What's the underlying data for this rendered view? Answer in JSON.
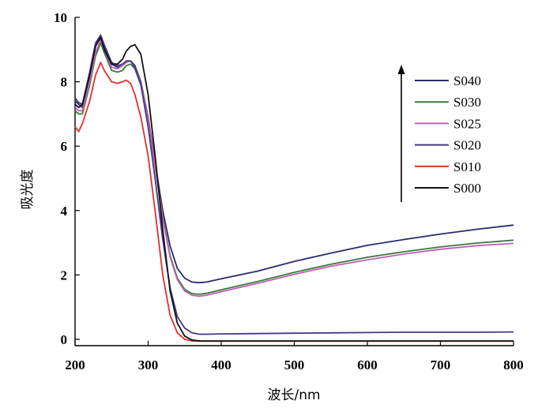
{
  "chart_data": {
    "type": "line",
    "title": "",
    "xlabel": "波长/nm",
    "ylabel": "吸光度",
    "xlim": [
      200,
      800
    ],
    "ylim": [
      0,
      10
    ],
    "xticks": [
      200,
      300,
      400,
      500,
      600,
      700,
      800
    ],
    "yticks": [
      0,
      2,
      4,
      6,
      8,
      10
    ],
    "grid": false,
    "legend_position": "right, upper-middle",
    "legend_arrow": "up",
    "series": [
      {
        "name": "S040",
        "color": "#2b2a70",
        "x": [
          200,
          205,
          210,
          220,
          228,
          235,
          240,
          250,
          258,
          265,
          270,
          276,
          282,
          290,
          300,
          310,
          320,
          330,
          340,
          350,
          360,
          370,
          380,
          400,
          450,
          500,
          550,
          600,
          650,
          700,
          750,
          800
        ],
        "y": [
          7.4,
          7.3,
          7.2,
          8.2,
          9.1,
          9.42,
          9.1,
          8.55,
          8.45,
          8.5,
          8.6,
          8.65,
          8.5,
          8.0,
          6.9,
          5.4,
          4.0,
          2.9,
          2.2,
          1.9,
          1.78,
          1.76,
          1.78,
          1.88,
          2.12,
          2.42,
          2.68,
          2.92,
          3.1,
          3.27,
          3.42,
          3.55
        ]
      },
      {
        "name": "S030",
        "color": "#3a7a3a",
        "x": [
          200,
          205,
          210,
          220,
          228,
          235,
          240,
          250,
          258,
          265,
          270,
          276,
          282,
          290,
          300,
          310,
          320,
          330,
          340,
          350,
          360,
          370,
          380,
          400,
          450,
          500,
          550,
          600,
          650,
          700,
          750,
          800
        ],
        "y": [
          7.1,
          7.0,
          7.0,
          7.9,
          8.8,
          9.2,
          8.9,
          8.35,
          8.3,
          8.35,
          8.5,
          8.55,
          8.4,
          7.9,
          6.8,
          5.3,
          3.8,
          2.6,
          1.9,
          1.55,
          1.42,
          1.4,
          1.43,
          1.54,
          1.8,
          2.08,
          2.33,
          2.55,
          2.72,
          2.87,
          2.99,
          3.08
        ]
      },
      {
        "name": "S025",
        "color": "#c060b8",
        "x": [
          200,
          205,
          210,
          220,
          228,
          235,
          240,
          250,
          258,
          265,
          270,
          276,
          282,
          290,
          300,
          310,
          320,
          330,
          340,
          350,
          360,
          370,
          380,
          400,
          450,
          500,
          550,
          600,
          650,
          700,
          750,
          800
        ],
        "y": [
          7.2,
          7.1,
          7.1,
          8.0,
          8.9,
          9.3,
          9.0,
          8.45,
          8.4,
          8.5,
          8.6,
          8.65,
          8.45,
          7.95,
          6.85,
          5.3,
          3.75,
          2.55,
          1.85,
          1.5,
          1.37,
          1.34,
          1.37,
          1.48,
          1.74,
          2.02,
          2.27,
          2.47,
          2.65,
          2.8,
          2.91,
          2.98
        ]
      },
      {
        "name": "S020",
        "color": "#433a86",
        "x": [
          200,
          205,
          210,
          220,
          228,
          235,
          240,
          250,
          258,
          265,
          270,
          276,
          282,
          290,
          300,
          310,
          320,
          330,
          340,
          350,
          360,
          370,
          380,
          400,
          450,
          500,
          550,
          600,
          650,
          700,
          750,
          800
        ],
        "y": [
          7.5,
          7.35,
          7.3,
          8.3,
          9.2,
          9.45,
          9.15,
          8.6,
          8.5,
          8.55,
          8.65,
          8.65,
          8.45,
          7.9,
          6.6,
          4.9,
          3.1,
          1.6,
          0.7,
          0.35,
          0.2,
          0.16,
          0.16,
          0.17,
          0.18,
          0.19,
          0.2,
          0.21,
          0.22,
          0.22,
          0.22,
          0.23
        ]
      },
      {
        "name": "S010",
        "color": "#e0302c",
        "x": [
          200,
          205,
          210,
          220,
          228,
          235,
          240,
          250,
          258,
          265,
          270,
          276,
          282,
          290,
          300,
          310,
          320,
          330,
          340,
          350,
          360,
          370,
          380,
          400,
          450,
          500,
          550,
          600,
          650,
          700,
          750,
          800
        ],
        "y": [
          6.6,
          6.45,
          6.7,
          7.4,
          8.2,
          8.6,
          8.35,
          8.0,
          7.95,
          8.0,
          8.05,
          7.95,
          7.6,
          6.9,
          5.7,
          3.9,
          2.0,
          0.75,
          0.2,
          0.0,
          -0.05,
          -0.06,
          -0.06,
          -0.06,
          -0.06,
          -0.06,
          -0.06,
          -0.06,
          -0.06,
          -0.06,
          -0.06,
          -0.06
        ]
      },
      {
        "name": "S000",
        "color": "#111111",
        "x": [
          200,
          205,
          210,
          220,
          228,
          235,
          240,
          250,
          258,
          265,
          270,
          276,
          282,
          290,
          300,
          310,
          320,
          330,
          340,
          350,
          360,
          370,
          380,
          400,
          450,
          500,
          550,
          600,
          650,
          700,
          750,
          800
        ],
        "y": [
          7.3,
          7.2,
          7.3,
          8.2,
          9.1,
          9.38,
          9.0,
          8.55,
          8.55,
          8.7,
          8.95,
          9.1,
          9.15,
          8.85,
          7.6,
          5.6,
          3.4,
          1.5,
          0.5,
          0.1,
          -0.02,
          -0.05,
          -0.05,
          -0.05,
          -0.05,
          -0.05,
          -0.05,
          -0.05,
          -0.05,
          -0.05,
          -0.05,
          -0.05
        ]
      }
    ]
  }
}
